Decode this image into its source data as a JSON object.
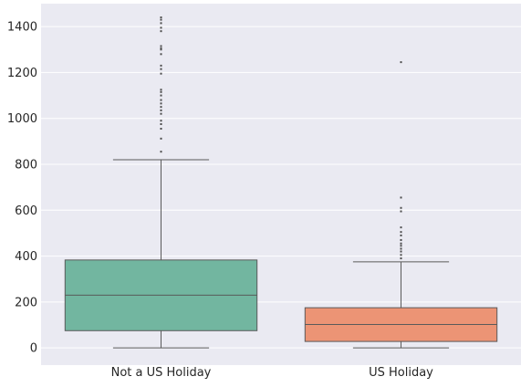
{
  "chart_data": {
    "type": "box",
    "title": "",
    "xlabel": "",
    "ylabel": "",
    "ylim": [
      -75,
      1500
    ],
    "yticks": [
      0,
      200,
      400,
      600,
      800,
      1000,
      1200,
      1400
    ],
    "grid": true,
    "background": "#eaeaf2",
    "categories": [
      "Not a US Holiday",
      "US Holiday"
    ],
    "boxes": [
      {
        "category": "Not a US Holiday",
        "color": "#72b6a0",
        "whisker_low": 0,
        "q1": 75,
        "median": 230,
        "q3": 383,
        "whisker_high": 820,
        "outliers": [
          855,
          912,
          955,
          975,
          990,
          1020,
          1035,
          1050,
          1065,
          1080,
          1100,
          1115,
          1125,
          1195,
          1215,
          1230,
          1280,
          1300,
          1305,
          1315,
          1380,
          1395,
          1415,
          1430,
          1440
        ]
      },
      {
        "category": "US Holiday",
        "color": "#ec9475",
        "whisker_low": 0,
        "q1": 28,
        "median": 102,
        "q3": 175,
        "whisker_high": 375,
        "outliers": [
          390,
          405,
          420,
          432,
          445,
          455,
          470,
          490,
          505,
          525,
          595,
          610,
          655,
          1245
        ]
      }
    ]
  }
}
